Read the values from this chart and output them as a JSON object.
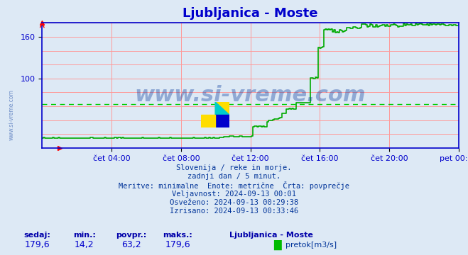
{
  "title": "Ljubljanica - Moste",
  "title_color": "#0000cc",
  "bg_color": "#dde9f5",
  "plot_bg_color": "#dde9f5",
  "line_color": "#00aa00",
  "axis_color": "#0000cc",
  "grid_color": "#ff9999",
  "avg_line_color": "#00cc00",
  "avg_line_style": "--",
  "ylabel_left": "",
  "xlabel": "",
  "ylim": [
    0,
    180
  ],
  "yticks": [
    0,
    20,
    40,
    60,
    80,
    100,
    120,
    140,
    160,
    180
  ],
  "xtick_labels": [
    "čet 04:00",
    "čet 08:00",
    "čet 12:00",
    "čet 16:00",
    "čet 20:00",
    "pet 00:00"
  ],
  "watermark": "www.si-vreme.com",
  "info_lines": [
    "Slovenija / reke in morje.",
    "zadnji dan / 5 minut.",
    "Meritve: minimalne  Enote: metrične  Črta: povprečje",
    "Veljavnost: 2024-09-13 00:01",
    "Osveženo: 2024-09-13 00:29:38",
    "Izrisano: 2024-09-13 00:33:46"
  ],
  "stats_labels": [
    "sedaj:",
    "min.:",
    "povpr.:",
    "maks.:"
  ],
  "stats_values": [
    "179,6",
    "14,2",
    "63,2",
    "179,6"
  ],
  "legend_label": "pretok[m3/s]",
  "legend_color": "#00bb00",
  "station_name": "Ljubljanica - Moste",
  "avg_value": 63.2,
  "min_value": 14.2,
  "max_value": 179.6
}
